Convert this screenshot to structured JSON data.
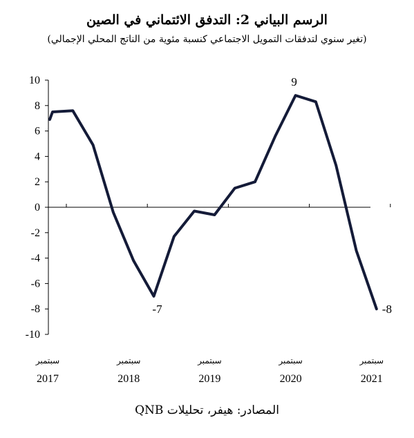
{
  "chart_data": {
    "type": "line",
    "title": "الرسم البياني 2: التدفق الائتماني في الصين",
    "subtitle": "(تغير سنوي لتدفقات التمويل الاجتماعي كنسبة مئوية من الناتج المحلي الإجمالي)",
    "source": "المصادر: هيفر، تحليلات QNB",
    "ylim": [
      -10,
      10
    ],
    "yticks": [
      "10",
      "8",
      "6",
      "4",
      "2",
      "0",
      "-2",
      "-4",
      "-6",
      "-8",
      "-10"
    ],
    "x_ticks": [
      {
        "month": "سبتمبر",
        "year": "2017"
      },
      {
        "month": "سبتمبر",
        "year": "2018"
      },
      {
        "month": "سبتمبر",
        "year": "2019"
      },
      {
        "month": "سبتمبر",
        "year": "2020"
      },
      {
        "month": "سبتمبر",
        "year": "2021"
      }
    ],
    "series": [
      {
        "color": "#141b38",
        "quarters": [
          "Q3 2017",
          "Q4 2017",
          "Q1 2018",
          "Q2 2018",
          "Q3 2018",
          "Q4 2018",
          "Q1 2019",
          "Q2 2019",
          "Q3 2019",
          "Q4 2019",
          "Q1 2020",
          "Q2 2020",
          "Q3 2020",
          "Q4 2020",
          "Q1 2021",
          "Q2 2021",
          "Q3 2021"
        ],
        "values": [
          7.5,
          7.6,
          4.9,
          -0.4,
          -4.2,
          -7.0,
          -2.3,
          -0.3,
          -0.6,
          1.5,
          2.0,
          5.6,
          8.8,
          8.3,
          3.3,
          -3.4,
          -8.0
        ]
      }
    ],
    "annotations": [
      {
        "text": "-7",
        "quarter": "Q4 2018",
        "value": -7.0
      },
      {
        "text": "9",
        "quarter": "Q3 2020",
        "value": 8.8
      },
      {
        "text": "-8",
        "quarter": "Q3 2021",
        "value": -8.0
      }
    ],
    "grid": false
  }
}
